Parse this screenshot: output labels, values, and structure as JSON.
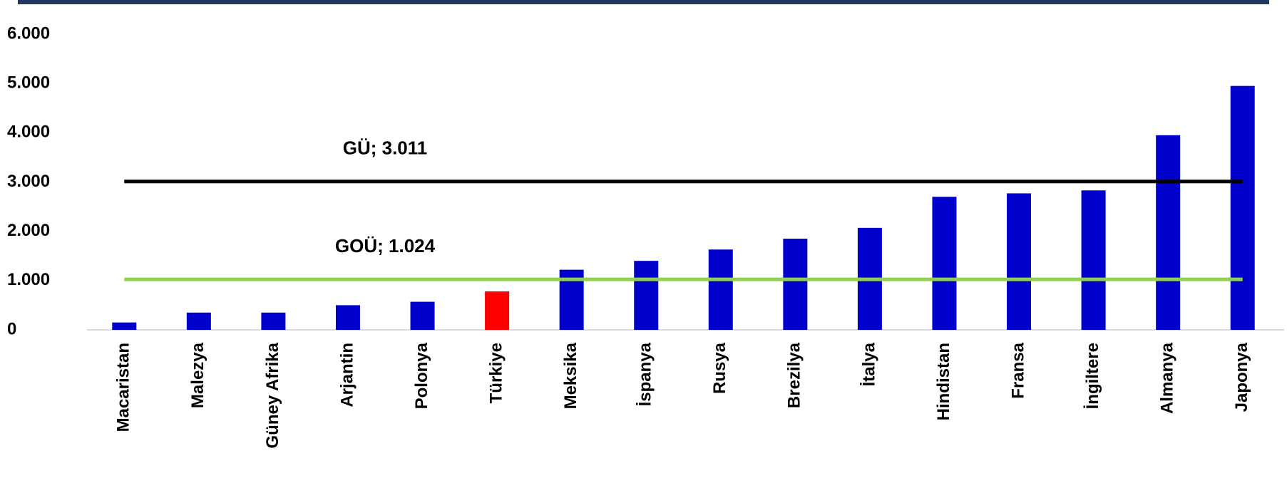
{
  "chart_data": {
    "type": "bar",
    "categories": [
      "Macaristan",
      "Malezya",
      "Güney Afrika",
      "Arjantin",
      "Polonya",
      "Türkiye",
      "Meksika",
      "İspanya",
      "Rusya",
      "Brezilya",
      "İtalya",
      "Hindistan",
      "Fransa",
      "İngiltere",
      "Almanya",
      "Japonya"
    ],
    "values": [
      150,
      350,
      350,
      500,
      570,
      780,
      1220,
      1400,
      1630,
      1850,
      2070,
      2700,
      2770,
      2830,
      3950,
      4950
    ],
    "colors": [
      "#0000cc",
      "#0000cc",
      "#0000cc",
      "#0000cc",
      "#0000cc",
      "#ff0000",
      "#0000cc",
      "#0000cc",
      "#0000cc",
      "#0000cc",
      "#0000cc",
      "#0000cc",
      "#0000cc",
      "#0000cc",
      "#0000cc",
      "#0000cc"
    ],
    "ylim": [
      0,
      6000
    ],
    "yticks": [
      0,
      {
        "value": 1000,
        "label": "1.000"
      },
      {
        "value": 2000,
        "label": "2.000"
      },
      {
        "value": 3000,
        "label": "3.000"
      },
      {
        "value": 4000,
        "label": "4.000"
      },
      {
        "value": 5000,
        "label": "5.000"
      },
      {
        "value": 6000,
        "label": "6.000"
      }
    ],
    "grid": false,
    "reference_lines": [
      {
        "label": "GÜ; 3.011",
        "value": 3011,
        "color": "#000000"
      },
      {
        "label": "GOÜ; 1.024",
        "value": 1024,
        "color": "#92d050"
      }
    ]
  }
}
